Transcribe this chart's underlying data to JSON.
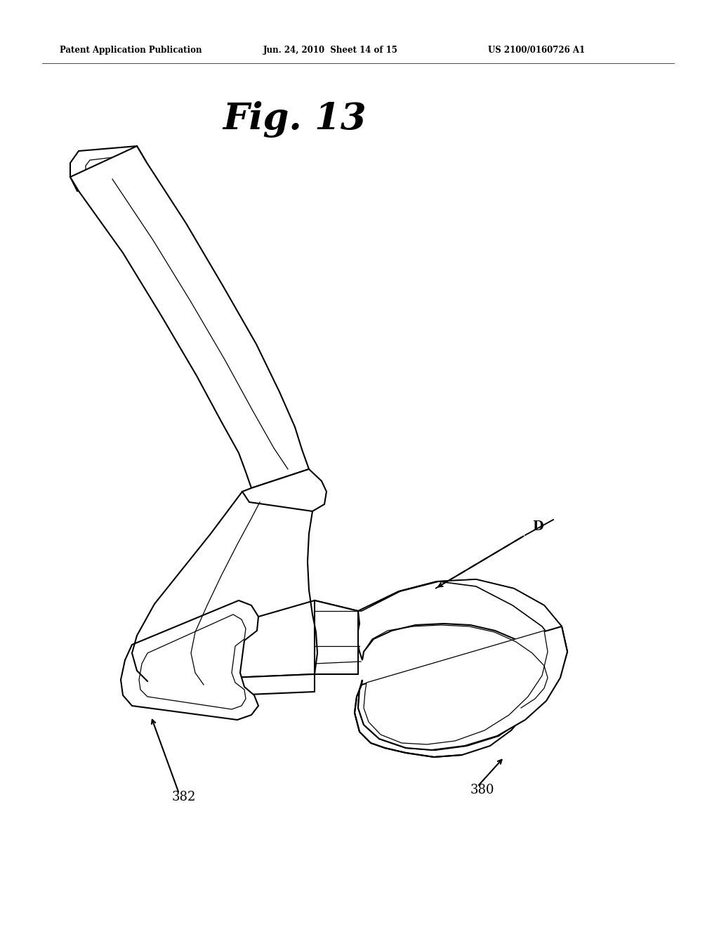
{
  "title": "Fig. 13",
  "header_left": "Patent Application Publication",
  "header_center": "Jun. 24, 2010  Sheet 14 of 15",
  "header_right": "US 2100/0160726 A1",
  "label_380": "380",
  "label_382": "382",
  "label_D": "D",
  "bg_color": "#ffffff",
  "line_color": "#000000",
  "lw": 1.5,
  "lw_thin": 0.9,
  "fig_width": 10.24,
  "fig_height": 13.2
}
